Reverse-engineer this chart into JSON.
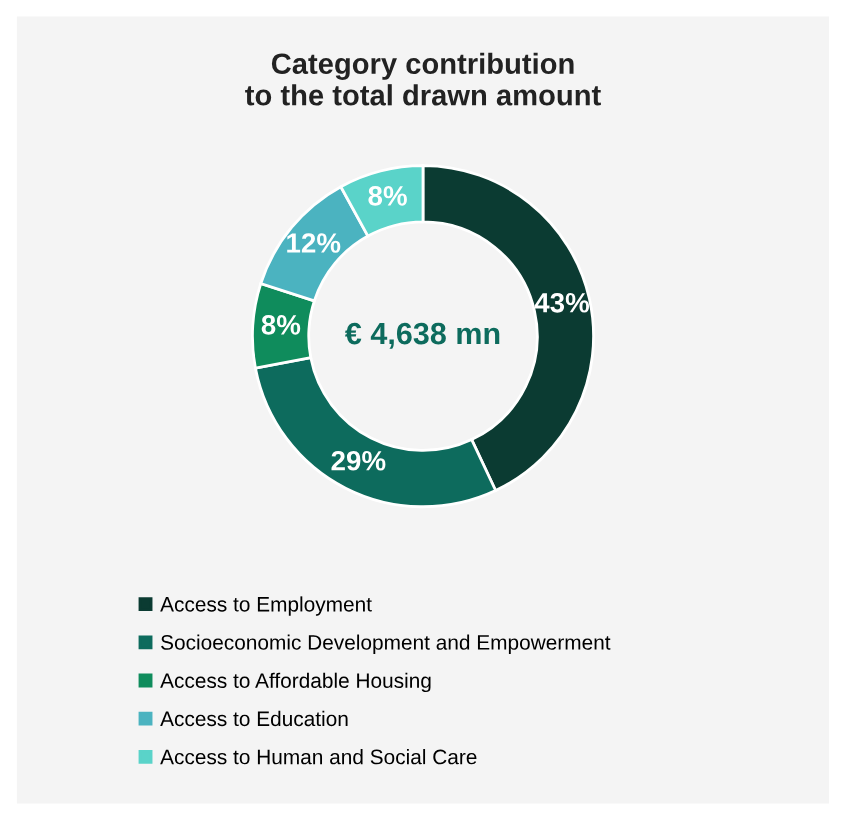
{
  "chart_data": {
    "type": "donut",
    "title": "Category contribution\nto the total drawn amount",
    "categories": [
      "Access to Employment",
      "Socioeconomic Development and Empowerment",
      "Access to Affordable Housing",
      "Access to Education",
      "Access to Human and Social Care"
    ],
    "values": [
      43,
      29,
      8,
      12,
      8
    ],
    "colors": [
      "#0b3b32",
      "#0d6b5d",
      "#0f8c5c",
      "#4bb3c0",
      "#5ad3c9"
    ],
    "value_labels": [
      "43%",
      "29%",
      "8%",
      "12%",
      "8%"
    ],
    "annotations": [
      "€ 4,638 mn"
    ],
    "legend": "bottom"
  }
}
